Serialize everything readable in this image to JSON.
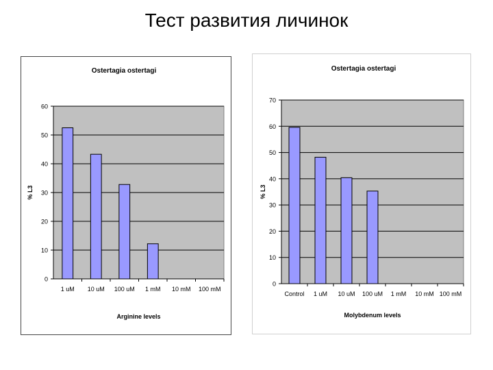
{
  "slide": {
    "title": "Тест развития личинок"
  },
  "chart_data": [
    {
      "type": "bar",
      "title": "Ostertagia ostertagi",
      "xlabel": "Arginine levels",
      "ylabel": "% L3",
      "categories": [
        "1 uM",
        "10 uM",
        "100 uM",
        "1 mM",
        "10 mM",
        "100 mM"
      ],
      "values": [
        52.5,
        43.3,
        32.8,
        12.2,
        0,
        0
      ],
      "ylim": [
        0,
        60
      ],
      "yticks": [
        "0",
        "10",
        "20",
        "30",
        "40",
        "50",
        "60"
      ],
      "grid": true,
      "colors": {
        "bar": "#9999ff",
        "bar_edge": "#000000",
        "plot_bg": "#c0c0c0"
      }
    },
    {
      "type": "bar",
      "title": "Ostertagia ostertagi",
      "xlabel": "Molybdenum levels",
      "ylabel": "% L3",
      "categories": [
        "Control",
        "1 uM",
        "10 uM",
        "100 uM",
        "1 mM",
        "10 mM",
        "100 mM"
      ],
      "values": [
        59.6,
        48.2,
        40.4,
        35.3,
        0,
        0,
        0
      ],
      "ylim": [
        0,
        70
      ],
      "yticks": [
        "0",
        "10",
        "20",
        "30",
        "40",
        "50",
        "60",
        "70"
      ],
      "grid": true,
      "colors": {
        "bar": "#9999ff",
        "bar_edge": "#000000",
        "plot_bg": "#c0c0c0"
      }
    }
  ]
}
